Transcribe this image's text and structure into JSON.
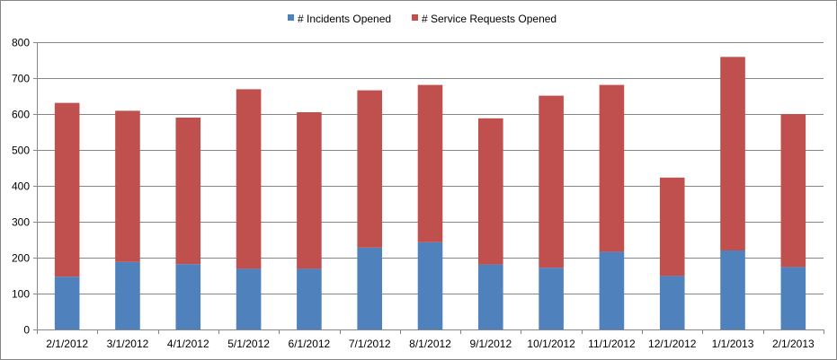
{
  "chart_data": {
    "type": "bar",
    "stacked": true,
    "categories": [
      "2/1/2012",
      "3/1/2012",
      "4/1/2012",
      "5/1/2012",
      "6/1/2012",
      "7/1/2012",
      "8/1/2012",
      "9/1/2012",
      "10/1/2012",
      "11/1/2012",
      "12/1/2012",
      "1/1/2013",
      "2/1/2013"
    ],
    "series": [
      {
        "name": "# Incidents Opened",
        "color": "#4f81bd",
        "values": [
          147,
          188,
          182,
          169,
          169,
          228,
          243,
          181,
          172,
          216,
          149,
          220,
          174
        ]
      },
      {
        "name": "# Service Requests Opened",
        "color": "#c0504d",
        "values": [
          484,
          421,
          408,
          500,
          436,
          438,
          438,
          407,
          479,
          465,
          274,
          539,
          426
        ]
      }
    ],
    "title": "",
    "xlabel": "",
    "ylabel": "",
    "ylim": [
      0,
      800
    ],
    "yticks": [
      0,
      100,
      200,
      300,
      400,
      500,
      600,
      700,
      800
    ],
    "grid": true,
    "legend_position": "top"
  }
}
